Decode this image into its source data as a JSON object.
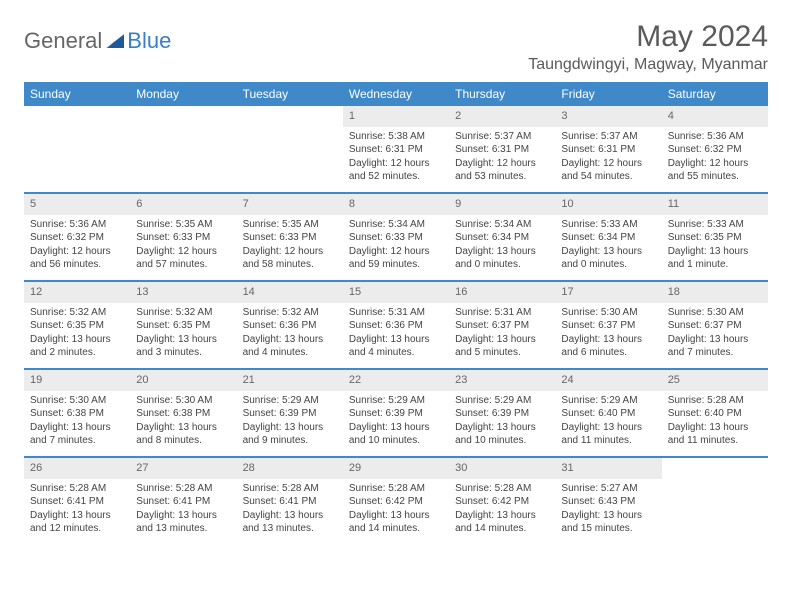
{
  "brand": {
    "part1": "General",
    "part2": "Blue"
  },
  "title": "May 2024",
  "location": "Taungdwingyi, Magway, Myanmar",
  "colors": {
    "header_bar": "#3f89c9",
    "day_num_bg": "#ececec",
    "week_divider": "#3f89c9",
    "text": "#444444",
    "title_text": "#5a5a5a",
    "background": "#ffffff"
  },
  "layout": {
    "columns": 7,
    "rows": 5,
    "blank_leading_cells": 3
  },
  "weekdays": [
    "Sunday",
    "Monday",
    "Tuesday",
    "Wednesday",
    "Thursday",
    "Friday",
    "Saturday"
  ],
  "days": [
    {
      "n": "1",
      "sunrise": "5:38 AM",
      "sunset": "6:31 PM",
      "daylight": "12 hours and 52 minutes."
    },
    {
      "n": "2",
      "sunrise": "5:37 AM",
      "sunset": "6:31 PM",
      "daylight": "12 hours and 53 minutes."
    },
    {
      "n": "3",
      "sunrise": "5:37 AM",
      "sunset": "6:31 PM",
      "daylight": "12 hours and 54 minutes."
    },
    {
      "n": "4",
      "sunrise": "5:36 AM",
      "sunset": "6:32 PM",
      "daylight": "12 hours and 55 minutes."
    },
    {
      "n": "5",
      "sunrise": "5:36 AM",
      "sunset": "6:32 PM",
      "daylight": "12 hours and 56 minutes."
    },
    {
      "n": "6",
      "sunrise": "5:35 AM",
      "sunset": "6:33 PM",
      "daylight": "12 hours and 57 minutes."
    },
    {
      "n": "7",
      "sunrise": "5:35 AM",
      "sunset": "6:33 PM",
      "daylight": "12 hours and 58 minutes."
    },
    {
      "n": "8",
      "sunrise": "5:34 AM",
      "sunset": "6:33 PM",
      "daylight": "12 hours and 59 minutes."
    },
    {
      "n": "9",
      "sunrise": "5:34 AM",
      "sunset": "6:34 PM",
      "daylight": "13 hours and 0 minutes."
    },
    {
      "n": "10",
      "sunrise": "5:33 AM",
      "sunset": "6:34 PM",
      "daylight": "13 hours and 0 minutes."
    },
    {
      "n": "11",
      "sunrise": "5:33 AM",
      "sunset": "6:35 PM",
      "daylight": "13 hours and 1 minute."
    },
    {
      "n": "12",
      "sunrise": "5:32 AM",
      "sunset": "6:35 PM",
      "daylight": "13 hours and 2 minutes."
    },
    {
      "n": "13",
      "sunrise": "5:32 AM",
      "sunset": "6:35 PM",
      "daylight": "13 hours and 3 minutes."
    },
    {
      "n": "14",
      "sunrise": "5:32 AM",
      "sunset": "6:36 PM",
      "daylight": "13 hours and 4 minutes."
    },
    {
      "n": "15",
      "sunrise": "5:31 AM",
      "sunset": "6:36 PM",
      "daylight": "13 hours and 4 minutes."
    },
    {
      "n": "16",
      "sunrise": "5:31 AM",
      "sunset": "6:37 PM",
      "daylight": "13 hours and 5 minutes."
    },
    {
      "n": "17",
      "sunrise": "5:30 AM",
      "sunset": "6:37 PM",
      "daylight": "13 hours and 6 minutes."
    },
    {
      "n": "18",
      "sunrise": "5:30 AM",
      "sunset": "6:37 PM",
      "daylight": "13 hours and 7 minutes."
    },
    {
      "n": "19",
      "sunrise": "5:30 AM",
      "sunset": "6:38 PM",
      "daylight": "13 hours and 7 minutes."
    },
    {
      "n": "20",
      "sunrise": "5:30 AM",
      "sunset": "6:38 PM",
      "daylight": "13 hours and 8 minutes."
    },
    {
      "n": "21",
      "sunrise": "5:29 AM",
      "sunset": "6:39 PM",
      "daylight": "13 hours and 9 minutes."
    },
    {
      "n": "22",
      "sunrise": "5:29 AM",
      "sunset": "6:39 PM",
      "daylight": "13 hours and 10 minutes."
    },
    {
      "n": "23",
      "sunrise": "5:29 AM",
      "sunset": "6:39 PM",
      "daylight": "13 hours and 10 minutes."
    },
    {
      "n": "24",
      "sunrise": "5:29 AM",
      "sunset": "6:40 PM",
      "daylight": "13 hours and 11 minutes."
    },
    {
      "n": "25",
      "sunrise": "5:28 AM",
      "sunset": "6:40 PM",
      "daylight": "13 hours and 11 minutes."
    },
    {
      "n": "26",
      "sunrise": "5:28 AM",
      "sunset": "6:41 PM",
      "daylight": "13 hours and 12 minutes."
    },
    {
      "n": "27",
      "sunrise": "5:28 AM",
      "sunset": "6:41 PM",
      "daylight": "13 hours and 13 minutes."
    },
    {
      "n": "28",
      "sunrise": "5:28 AM",
      "sunset": "6:41 PM",
      "daylight": "13 hours and 13 minutes."
    },
    {
      "n": "29",
      "sunrise": "5:28 AM",
      "sunset": "6:42 PM",
      "daylight": "13 hours and 14 minutes."
    },
    {
      "n": "30",
      "sunrise": "5:28 AM",
      "sunset": "6:42 PM",
      "daylight": "13 hours and 14 minutes."
    },
    {
      "n": "31",
      "sunrise": "5:27 AM",
      "sunset": "6:43 PM",
      "daylight": "13 hours and 15 minutes."
    }
  ],
  "labels": {
    "sunrise": "Sunrise:",
    "sunset": "Sunset:",
    "daylight": "Daylight:"
  }
}
